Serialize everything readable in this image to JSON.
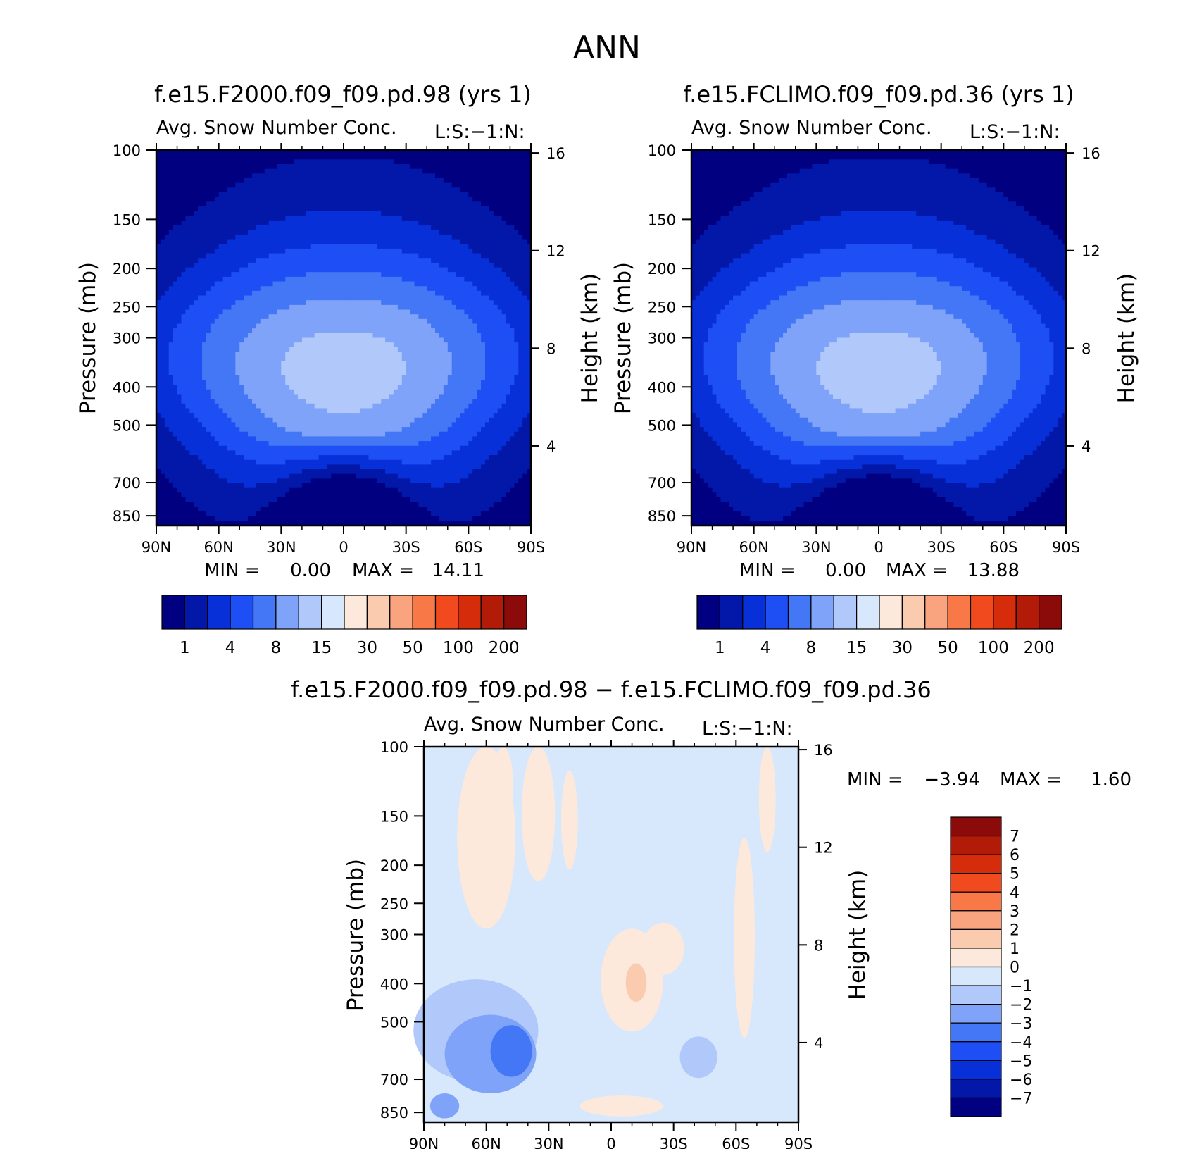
{
  "figure": {
    "title": "ANN"
  },
  "chart_data": [
    {
      "type": "contour",
      "panel": "top-left",
      "title": "f.e15.F2000.f09_f09.pd.98 (yrs 1)",
      "subtitle": "Avg. Snow Number Conc.",
      "units_label": "L:S:−1:N:",
      "xlabel": "",
      "ylabel": "Pressure (mb)",
      "ylabel_right": "Height (km)",
      "x_ticks": [
        "90N",
        "60N",
        "30N",
        "0",
        "30S",
        "60S",
        "90S"
      ],
      "y_ticks": [
        "100",
        "150",
        "200",
        "250",
        "300",
        "400",
        "500",
        "700",
        "850"
      ],
      "y_ticks_right": [
        "16",
        "12",
        "8",
        "4"
      ],
      "stats": {
        "min_label": "MIN =",
        "min_value": "0.00",
        "max_label": "MAX =",
        "max_value": "14.11"
      },
      "peak_level": 6.0,
      "colorbar": {
        "orientation": "horizontal",
        "colors": [
          "#000080",
          "#0318A8",
          "#0830D8",
          "#1E4FF5",
          "#4477F5",
          "#7FA3F8",
          "#B1C8FA",
          "#D8E8FC",
          "#FDE9DB",
          "#FBCBB0",
          "#F9A47F",
          "#F87848",
          "#F24A1F",
          "#D52C0C",
          "#B21B08",
          "#8B0A0A"
        ],
        "tick_labels": [
          "1",
          "4",
          "8",
          "15",
          "30",
          "50",
          "100",
          "200"
        ]
      }
    },
    {
      "type": "contour",
      "panel": "top-right",
      "title": "f.e15.FCLIMO.f09_f09.pd.36 (yrs 1)",
      "subtitle": "Avg. Snow Number Conc.",
      "units_label": "L:S:−1:N:",
      "xlabel": "",
      "ylabel": "Pressure (mb)",
      "ylabel_right": "Height (km)",
      "x_ticks": [
        "90N",
        "60N",
        "30N",
        "0",
        "30S",
        "60S",
        "90S"
      ],
      "y_ticks": [
        "100",
        "150",
        "200",
        "250",
        "300",
        "400",
        "500",
        "700",
        "850"
      ],
      "y_ticks_right": [
        "16",
        "12",
        "8",
        "4"
      ],
      "stats": {
        "min_label": "MIN =",
        "min_value": "0.00",
        "max_label": "MAX =",
        "max_value": "13.88"
      },
      "peak_level": 6.0,
      "colorbar": {
        "orientation": "horizontal",
        "colors": [
          "#000080",
          "#0318A8",
          "#0830D8",
          "#1E4FF5",
          "#4477F5",
          "#7FA3F8",
          "#B1C8FA",
          "#D8E8FC",
          "#FDE9DB",
          "#FBCBB0",
          "#F9A47F",
          "#F87848",
          "#F24A1F",
          "#D52C0C",
          "#B21B08",
          "#8B0A0A"
        ],
        "tick_labels": [
          "1",
          "4",
          "8",
          "15",
          "30",
          "50",
          "100",
          "200"
        ]
      }
    },
    {
      "type": "contour",
      "panel": "bottom-difference",
      "title": "f.e15.F2000.f09_f09.pd.98 − f.e15.FCLIMO.f09_f09.pd.36",
      "subtitle": "Avg. Snow Number Conc.",
      "units_label": "L:S:−1:N:",
      "xlabel": "",
      "ylabel": "Pressure (mb)",
      "ylabel_right": "Height (km)",
      "x_ticks": [
        "90N",
        "60N",
        "30N",
        "0",
        "30S",
        "60S",
        "90S"
      ],
      "y_ticks": [
        "100",
        "150",
        "200",
        "250",
        "300",
        "400",
        "500",
        "700",
        "850"
      ],
      "y_ticks_right": [
        "16",
        "12",
        "8",
        "4"
      ],
      "stats": {
        "min_label": "MIN =",
        "min_value": "−3.94",
        "max_label": "MAX =",
        "max_value": "1.60"
      },
      "colorbar": {
        "orientation": "vertical",
        "colors": [
          "#000080",
          "#0318A8",
          "#0830D8",
          "#1E4FF5",
          "#4477F5",
          "#7FA3F8",
          "#B1C8FA",
          "#D8E8FC",
          "#FDE9DB",
          "#FBCBB0",
          "#F9A47F",
          "#F87848",
          "#F24A1F",
          "#D52C0C",
          "#B21B08",
          "#8B0A0A"
        ],
        "tick_labels": [
          "7",
          "6",
          "5",
          "4",
          "3",
          "2",
          "1",
          "0",
          "−1",
          "−2",
          "−3",
          "−4",
          "−5",
          "−6",
          "−7"
        ]
      },
      "regions": [
        {
          "lat": 60,
          "p": 185,
          "rx": 14,
          "ry": 105,
          "level": 8
        },
        {
          "lat": 52,
          "p": 120,
          "rx": 5,
          "ry": 40,
          "level": 8
        },
        {
          "lat": 35,
          "p": 160,
          "rx": 8,
          "ry": 60,
          "level": 8
        },
        {
          "lat": 20,
          "p": 160,
          "rx": 4,
          "ry": 45,
          "level": 8
        },
        {
          "lat": -10,
          "p": 410,
          "rx": 15,
          "ry": 120,
          "level": 8
        },
        {
          "lat": -12,
          "p": 400,
          "rx": 5,
          "ry": 45,
          "level": 9
        },
        {
          "lat": -25,
          "p": 330,
          "rx": 10,
          "ry": 50,
          "level": 8
        },
        {
          "lat": -64,
          "p": 360,
          "rx": 5,
          "ry": 190,
          "level": 8
        },
        {
          "lat": -75,
          "p": 140,
          "rx": 4,
          "ry": 45,
          "level": 8
        },
        {
          "lat": -5,
          "p": 820,
          "rx": 20,
          "ry": 50,
          "level": 8
        },
        {
          "lat": 65,
          "p": 550,
          "rx": 30,
          "ry": 160,
          "level": 6
        },
        {
          "lat": 58,
          "p": 620,
          "rx": 22,
          "ry": 140,
          "level": 5
        },
        {
          "lat": 48,
          "p": 600,
          "rx": 10,
          "ry": 90,
          "level": 4
        },
        {
          "lat": 80,
          "p": 820,
          "rx": 7,
          "ry": 60,
          "level": 5
        },
        {
          "lat": -42,
          "p": 620,
          "rx": 9,
          "ry": 75,
          "level": 6
        }
      ]
    }
  ]
}
